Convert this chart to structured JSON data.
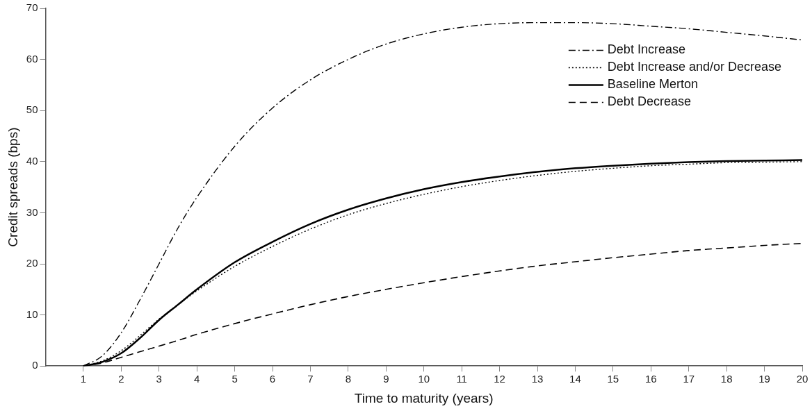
{
  "chart_data": {
    "type": "line",
    "xlabel": "Time to maturity (years)",
    "ylabel": "Credit spreads (bps)",
    "x": [
      1,
      1.5,
      2,
      2.5,
      3,
      3.5,
      4,
      5,
      6,
      7,
      8,
      9,
      10,
      11,
      12,
      13,
      14,
      15,
      16,
      17,
      18,
      19,
      20
    ],
    "xlim": [
      0,
      20
    ],
    "xticks": [
      1,
      2,
      3,
      4,
      5,
      6,
      7,
      8,
      9,
      10,
      11,
      12,
      13,
      14,
      15,
      16,
      17,
      18,
      19,
      20
    ],
    "ylim": [
      0,
      70
    ],
    "yticks": [
      0,
      10,
      20,
      30,
      40,
      50,
      60,
      70
    ],
    "grid": false,
    "legend": "top right",
    "marker": "none",
    "series": [
      {
        "name": "Debt Increase",
        "color": "#000000",
        "line_style": "dashdot",
        "values": [
          0,
          2,
          6.5,
          13,
          20,
          27,
          33,
          43,
          50.5,
          56,
          60,
          63,
          65,
          66.3,
          67,
          67.2,
          67.2,
          67,
          66.5,
          66,
          65.3,
          64.6,
          63.8
        ]
      },
      {
        "name": "Debt Increase and/or Decrease",
        "color": "#000000",
        "line_style": "dotted",
        "values": [
          0,
          1,
          3,
          6,
          9.2,
          12,
          14.7,
          19.5,
          23.4,
          26.8,
          29.6,
          31.8,
          33.6,
          35.1,
          36.3,
          37.3,
          38.1,
          38.7,
          39.2,
          39.5,
          39.8,
          39.9,
          40
        ]
      },
      {
        "name": "Baseline Merton",
        "color": "#000000",
        "line_style": "solid",
        "values": [
          0,
          0.8,
          2.5,
          5.5,
          9,
          12,
          15,
          20.3,
          24.3,
          27.8,
          30.6,
          32.8,
          34.6,
          36,
          37.1,
          38,
          38.7,
          39.2,
          39.6,
          39.9,
          40.1,
          40.2,
          40.3
        ]
      },
      {
        "name": "Debt Decrease",
        "color": "#000000",
        "line_style": "dashed",
        "values": [
          0,
          0.6,
          1.7,
          2.8,
          3.9,
          5,
          6.2,
          8.3,
          10.2,
          12,
          13.6,
          15,
          16.3,
          17.5,
          18.6,
          19.6,
          20.4,
          21.2,
          21.9,
          22.6,
          23.1,
          23.6,
          24
        ]
      }
    ]
  }
}
